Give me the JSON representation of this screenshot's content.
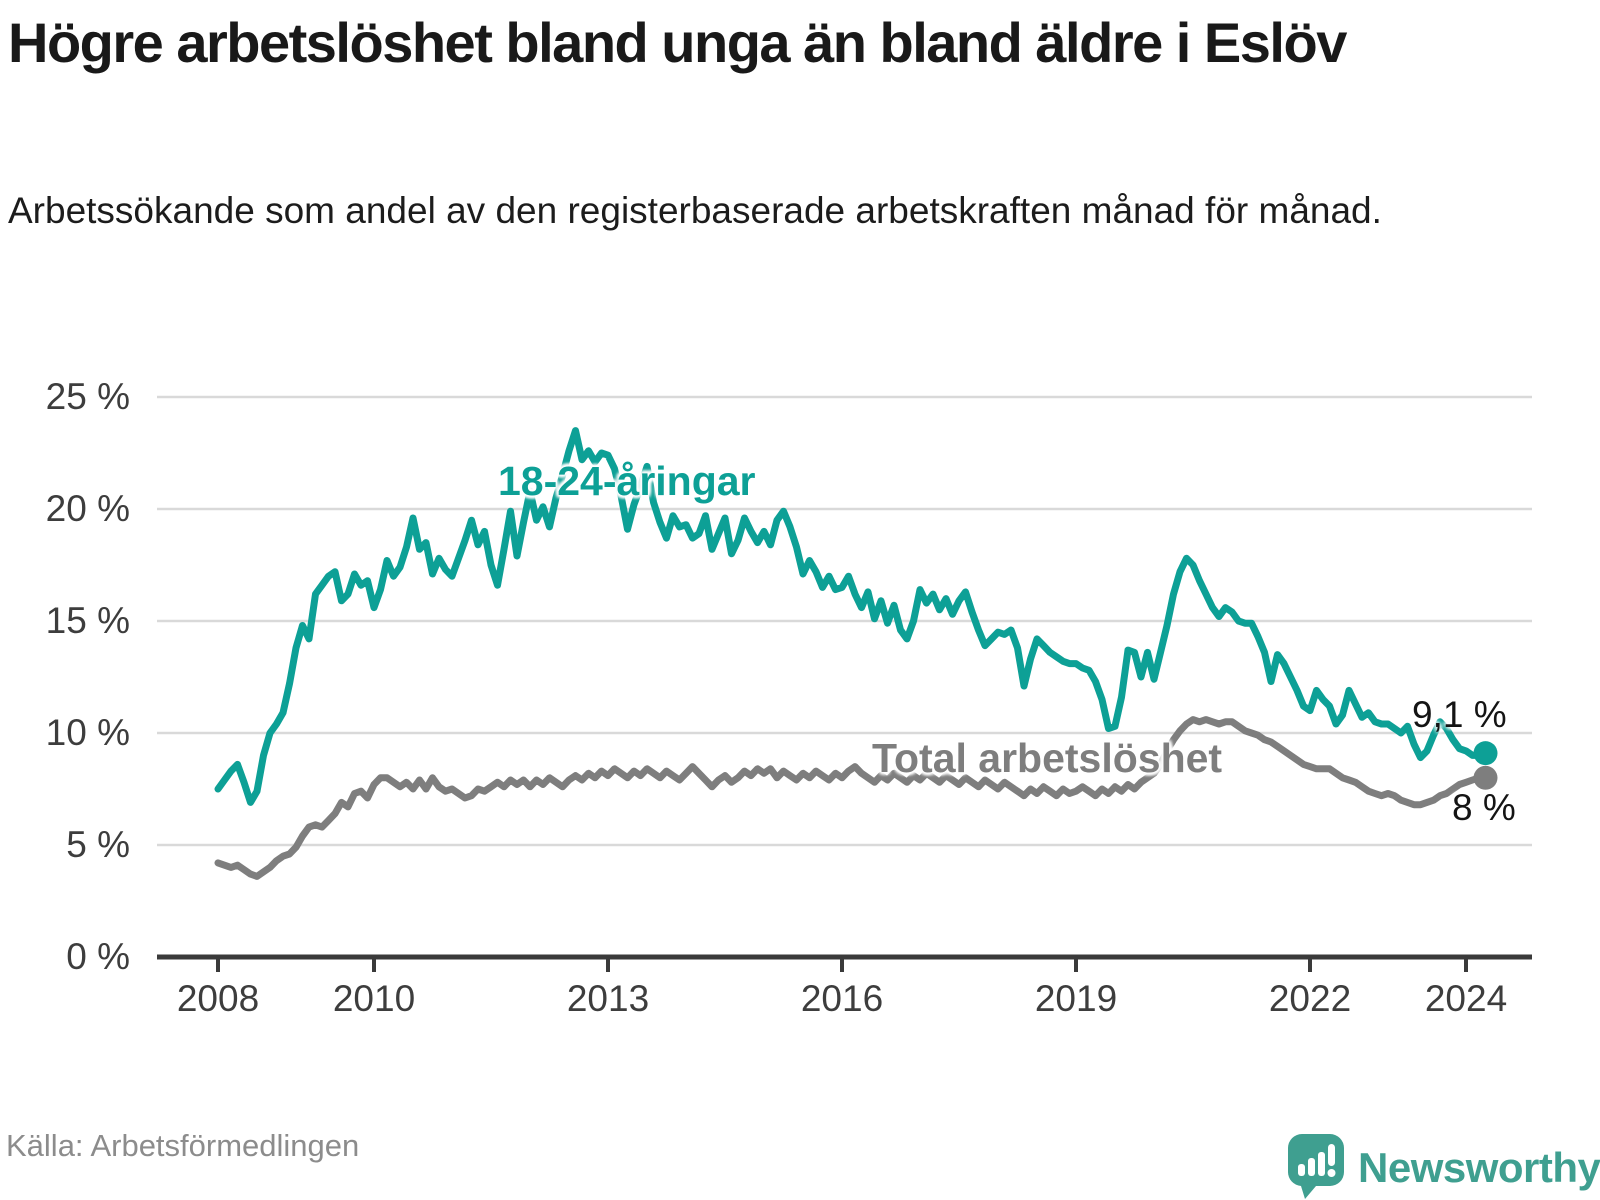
{
  "title": "Högre arbetslöshet bland unga än bland äldre i Eslöv",
  "subtitle": "Arbetssökande som andel av den registerbaserade arbetskraften månad för månad.",
  "source": "Källa: Arbetsförmedlingen",
  "brand": {
    "name": "Newsworthy"
  },
  "colors": {
    "youth": "#0DA096",
    "total": "#7E7E7E",
    "axis": "#3a3a3a",
    "grid": "#d9d9d9",
    "logo": "#3f9f90"
  },
  "chart_data": {
    "type": "line",
    "title": "Högre arbetslöshet bland unga än bland äldre i Eslöv",
    "xlabel": "",
    "ylabel": "",
    "x_start_year": 2008,
    "x_months_per_point": 1,
    "x_tick_years": [
      2008,
      2010,
      2013,
      2016,
      2019,
      2022,
      2024
    ],
    "x_tick_labels": [
      "2008",
      "2010",
      "2013",
      "2016",
      "2019",
      "2022",
      "2024"
    ],
    "y_tick_values": [
      0,
      5,
      10,
      15,
      20,
      25
    ],
    "y_tick_labels": [
      "0 %",
      "5 %",
      "10 %",
      "15 %",
      "20 %",
      "25 %"
    ],
    "ylim": [
      0,
      25
    ],
    "grid": true,
    "legend_position": "inline-labels",
    "series": [
      {
        "name": "18-24-åringar",
        "color": "#0DA096",
        "end_label": "9,1 %",
        "last_value": 9.1,
        "values": [
          7.5,
          7.9,
          8.3,
          8.6,
          7.8,
          6.9,
          7.4,
          9.0,
          10.0,
          10.4,
          10.9,
          12.2,
          13.8,
          14.8,
          14.2,
          16.2,
          16.6,
          17.0,
          17.2,
          15.9,
          16.2,
          17.1,
          16.6,
          16.8,
          15.6,
          16.4,
          17.7,
          17.0,
          17.4,
          18.3,
          19.6,
          18.2,
          18.5,
          17.1,
          17.8,
          17.3,
          17.0,
          17.8,
          18.6,
          19.5,
          18.4,
          19.0,
          17.5,
          16.6,
          18.2,
          19.9,
          17.9,
          19.4,
          20.8,
          19.5,
          20.1,
          19.2,
          20.5,
          21.5,
          22.6,
          23.5,
          22.2,
          22.6,
          22.1,
          22.5,
          22.4,
          21.8,
          20.6,
          19.1,
          20.2,
          21.0,
          21.9,
          20.3,
          19.4,
          18.7,
          19.7,
          19.2,
          19.3,
          18.7,
          18.9,
          19.7,
          18.2,
          18.9,
          19.6,
          18.0,
          18.6,
          19.6,
          19.0,
          18.5,
          19.0,
          18.4,
          19.5,
          19.9,
          19.2,
          18.3,
          17.1,
          17.7,
          17.2,
          16.5,
          17.0,
          16.4,
          16.5,
          17.0,
          16.2,
          15.6,
          16.3,
          15.1,
          15.9,
          14.9,
          15.7,
          14.6,
          14.2,
          15.0,
          16.4,
          15.8,
          16.2,
          15.5,
          16.0,
          15.3,
          15.9,
          16.3,
          15.4,
          14.6,
          13.9,
          14.2,
          14.5,
          14.4,
          14.6,
          13.8,
          12.1,
          13.3,
          14.2,
          13.9,
          13.6,
          13.4,
          13.2,
          13.1,
          13.1,
          12.9,
          12.8,
          12.3,
          11.5,
          10.2,
          10.3,
          11.6,
          13.7,
          13.6,
          12.5,
          13.6,
          12.4,
          13.6,
          14.8,
          16.2,
          17.2,
          17.8,
          17.5,
          16.8,
          16.2,
          15.6,
          15.2,
          15.6,
          15.4,
          15.0,
          14.9,
          14.9,
          14.3,
          13.6,
          12.3,
          13.5,
          13.1,
          12.5,
          11.9,
          11.2,
          11.0,
          11.9,
          11.5,
          11.2,
          10.4,
          10.8,
          11.9,
          11.3,
          10.7,
          10.9,
          10.5,
          10.4,
          10.4,
          10.2,
          10.0,
          10.3,
          9.5,
          8.9,
          9.2,
          9.9,
          10.5,
          10.2,
          9.7,
          9.3,
          9.2,
          9.0,
          9.0,
          9.1
        ]
      },
      {
        "name": "Total arbetslöshet",
        "color": "#7E7E7E",
        "end_label": "8 %",
        "last_value": 8.0,
        "values": [
          4.2,
          4.1,
          4.0,
          4.1,
          3.9,
          3.7,
          3.6,
          3.8,
          4.0,
          4.3,
          4.5,
          4.6,
          4.9,
          5.4,
          5.8,
          5.9,
          5.8,
          6.1,
          6.4,
          6.9,
          6.7,
          7.3,
          7.4,
          7.1,
          7.7,
          8.0,
          8.0,
          7.8,
          7.6,
          7.8,
          7.5,
          7.9,
          7.5,
          8.0,
          7.6,
          7.4,
          7.5,
          7.3,
          7.1,
          7.2,
          7.5,
          7.4,
          7.6,
          7.8,
          7.6,
          7.9,
          7.7,
          7.9,
          7.6,
          7.9,
          7.7,
          8.0,
          7.8,
          7.6,
          7.9,
          8.1,
          7.9,
          8.2,
          8.0,
          8.3,
          8.1,
          8.4,
          8.2,
          8.0,
          8.3,
          8.1,
          8.4,
          8.2,
          8.0,
          8.3,
          8.1,
          7.9,
          8.2,
          8.5,
          8.2,
          7.9,
          7.6,
          7.9,
          8.1,
          7.8,
          8.0,
          8.3,
          8.1,
          8.4,
          8.2,
          8.4,
          8.0,
          8.3,
          8.1,
          7.9,
          8.2,
          8.0,
          8.3,
          8.1,
          7.9,
          8.2,
          8.0,
          8.3,
          8.5,
          8.2,
          8.0,
          7.8,
          8.1,
          7.9,
          8.2,
          8.0,
          7.8,
          8.1,
          7.9,
          8.2,
          8.0,
          7.8,
          8.1,
          7.9,
          7.7,
          8.0,
          7.8,
          7.6,
          7.9,
          7.7,
          7.5,
          7.8,
          7.6,
          7.4,
          7.2,
          7.5,
          7.3,
          7.6,
          7.4,
          7.2,
          7.5,
          7.3,
          7.4,
          7.6,
          7.4,
          7.2,
          7.5,
          7.3,
          7.6,
          7.4,
          7.7,
          7.5,
          7.8,
          8.0,
          8.2,
          8.6,
          9.2,
          9.7,
          10.1,
          10.4,
          10.6,
          10.5,
          10.6,
          10.5,
          10.4,
          10.5,
          10.5,
          10.3,
          10.1,
          10.0,
          9.9,
          9.7,
          9.6,
          9.4,
          9.2,
          9.0,
          8.8,
          8.6,
          8.5,
          8.4,
          8.4,
          8.4,
          8.2,
          8.0,
          7.9,
          7.8,
          7.6,
          7.4,
          7.3,
          7.2,
          7.3,
          7.2,
          7.0,
          6.9,
          6.8,
          6.8,
          6.9,
          7.0,
          7.2,
          7.3,
          7.5,
          7.7,
          7.8,
          7.9,
          8.0,
          8.0
        ]
      }
    ]
  }
}
